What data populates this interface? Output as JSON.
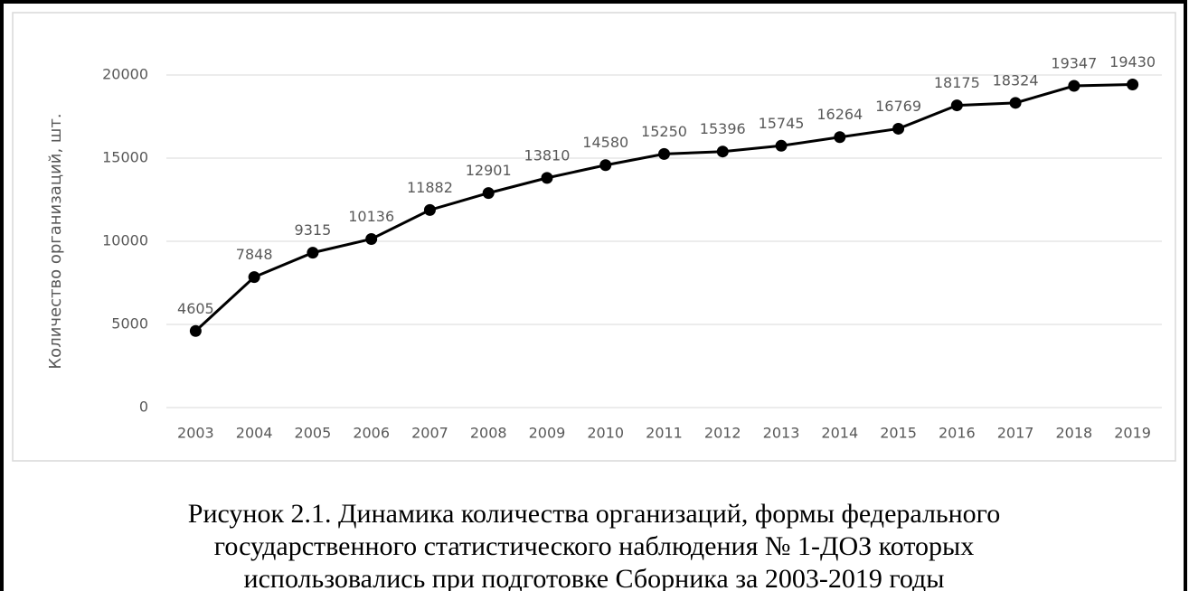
{
  "chart_data": {
    "type": "line",
    "y_label": "Количество организаций, шт.",
    "categories": [
      "2003",
      "2004",
      "2005",
      "2006",
      "2007",
      "2008",
      "2009",
      "2010",
      "2011",
      "2012",
      "2013",
      "2014",
      "2015",
      "2016",
      "2017",
      "2018",
      "2019"
    ],
    "values": [
      4605,
      7848,
      9315,
      10136,
      11882,
      12901,
      13810,
      14580,
      15250,
      15396,
      15745,
      16264,
      16769,
      18175,
      18324,
      19347,
      19430
    ],
    "color": "#000000",
    "ylim": [
      0,
      20000
    ],
    "yticks": [
      0,
      5000,
      10000,
      15000,
      20000
    ],
    "grid": true,
    "caption": [
      "Рисунок 2.1. Динамика количества организаций, формы федерального",
      "государственного статистического наблюдения № 1-ДОЗ которых",
      "использовались при подготовке Сборника за 2003-2019 годы"
    ]
  }
}
